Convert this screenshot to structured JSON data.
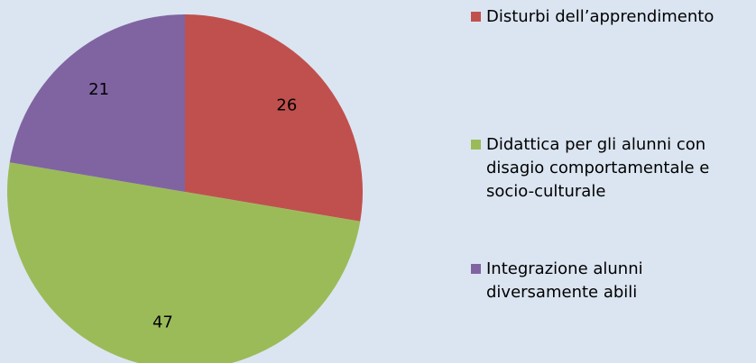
{
  "chart_data": {
    "type": "pie",
    "categories": [
      "Disturbi dell’apprendimento",
      "Didattica per gli alunni con disagio comportamentale e socio-culturale",
      "Integrazione alunni diversamente abili"
    ],
    "values": [
      26,
      47,
      21
    ],
    "colors": [
      "#c0504d",
      "#9bbb59",
      "#8064a2"
    ],
    "legend": "right"
  }
}
